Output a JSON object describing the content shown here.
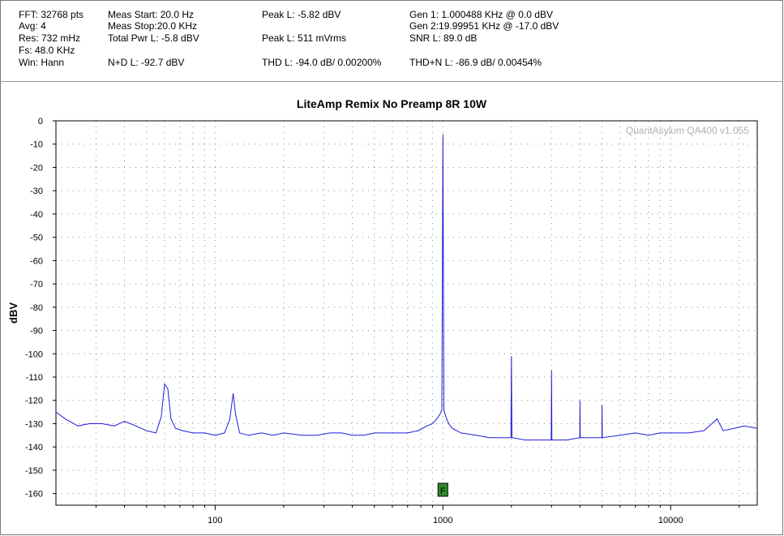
{
  "stats": {
    "fft": "FFT: 32768 pts",
    "avg": "Avg: 4",
    "res": "Res: 732 mHz",
    "fs": "Fs: 48.0 KHz",
    "win": "Win: Hann",
    "meas_start": "Meas Start: 20.0 Hz",
    "meas_stop": "Meas Stop:20.0 KHz",
    "total_pwr": "Total Pwr L: -5.8 dBV",
    "nd": "N+D L: -92.7 dBV",
    "peak_dbv": "Peak L: -5.82 dBV",
    "peak_mv": "Peak L: 511 mVrms",
    "thd": "THD L: -94.0 dB/ 0.00200%",
    "gen1": "Gen 1: 1.000488 KHz @ 0.0  dBV",
    "gen2": "Gen 2:19.99951 KHz @ -17.0  dBV",
    "snr": "SNR L: 89.0 dB",
    "thdn": "THD+N L: -86.9 dB/ 0.00454%"
  },
  "chart_data": {
    "type": "line",
    "title": "LiteAmp Remix No Preamp 8R 10W",
    "ylabel": "dBV",
    "xlabel": "",
    "watermark": "QuantAsylum QA400 v1.055",
    "x_scale": "log",
    "xlim": [
      20,
      24000
    ],
    "ylim": [
      -165,
      0
    ],
    "y_ticks": [
      0,
      -10,
      -20,
      -30,
      -40,
      -50,
      -60,
      -70,
      -80,
      -90,
      -100,
      -110,
      -120,
      -130,
      -140,
      -150,
      -160
    ],
    "x_tick_labels": [
      "100",
      "1000",
      "10000"
    ],
    "x_ticks": [
      100,
      1000,
      10000
    ],
    "grid": true,
    "line_color": "#1f1fd6",
    "marker_label": "F",
    "marker_freq": 1000,
    "marker_color": "#2e8b2e",
    "series": [
      {
        "points": [
          [
            20,
            -125
          ],
          [
            22,
            -128
          ],
          [
            25,
            -131
          ],
          [
            28,
            -130
          ],
          [
            32,
            -130
          ],
          [
            36,
            -131
          ],
          [
            40,
            -129
          ],
          [
            45,
            -131
          ],
          [
            50,
            -133
          ],
          [
            55,
            -134
          ],
          [
            58,
            -127
          ],
          [
            60,
            -113
          ],
          [
            62,
            -115
          ],
          [
            64,
            -128
          ],
          [
            67,
            -132
          ],
          [
            72,
            -133
          ],
          [
            80,
            -134
          ],
          [
            90,
            -134
          ],
          [
            100,
            -135
          ],
          [
            110,
            -134
          ],
          [
            116,
            -128
          ],
          [
            120,
            -117
          ],
          [
            123,
            -126
          ],
          [
            128,
            -134
          ],
          [
            140,
            -135
          ],
          [
            160,
            -134
          ],
          [
            180,
            -135
          ],
          [
            200,
            -134
          ],
          [
            240,
            -135
          ],
          [
            280,
            -135
          ],
          [
            320,
            -134
          ],
          [
            360,
            -134
          ],
          [
            400,
            -135
          ],
          [
            450,
            -135
          ],
          [
            500,
            -134
          ],
          [
            560,
            -134
          ],
          [
            630,
            -134
          ],
          [
            700,
            -134
          ],
          [
            780,
            -133
          ],
          [
            850,
            -131
          ],
          [
            900,
            -130
          ],
          [
            940,
            -128
          ],
          [
            970,
            -126
          ],
          [
            990,
            -124
          ],
          [
            1000,
            -5.8
          ],
          [
            1010,
            -124
          ],
          [
            1030,
            -127
          ],
          [
            1060,
            -130
          ],
          [
            1100,
            -132
          ],
          [
            1200,
            -134
          ],
          [
            1400,
            -135
          ],
          [
            1600,
            -136
          ],
          [
            1800,
            -136
          ],
          [
            1990,
            -136
          ],
          [
            2000,
            -101
          ],
          [
            2010,
            -136
          ],
          [
            2300,
            -137
          ],
          [
            2600,
            -137
          ],
          [
            2990,
            -137
          ],
          [
            3000,
            -107
          ],
          [
            3010,
            -137
          ],
          [
            3500,
            -137
          ],
          [
            3990,
            -136
          ],
          [
            4000,
            -120
          ],
          [
            4010,
            -136
          ],
          [
            4600,
            -136
          ],
          [
            4990,
            -136
          ],
          [
            5000,
            -122
          ],
          [
            5010,
            -136
          ],
          [
            6000,
            -135
          ],
          [
            7000,
            -134
          ],
          [
            8000,
            -135
          ],
          [
            9000,
            -134
          ],
          [
            10000,
            -134
          ],
          [
            12000,
            -134
          ],
          [
            14000,
            -133
          ],
          [
            16000,
            -128
          ],
          [
            17000,
            -133
          ],
          [
            19000,
            -132
          ],
          [
            21000,
            -131
          ],
          [
            24000,
            -132
          ]
        ]
      }
    ]
  }
}
